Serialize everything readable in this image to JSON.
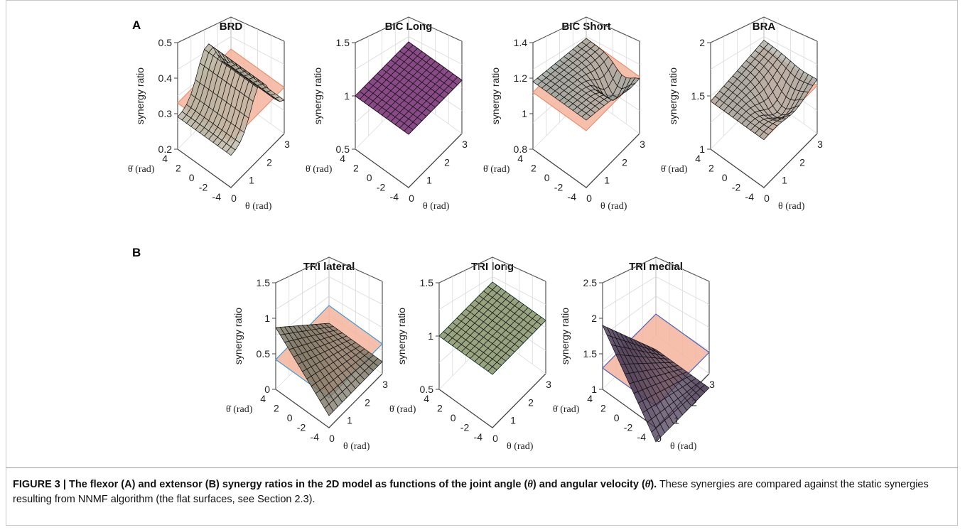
{
  "panels": [
    {
      "label": "A"
    },
    {
      "label": "B"
    }
  ],
  "plots": [
    {
      "title": "BRD",
      "zticks": [
        "0.5",
        "0.4",
        "0.3",
        "0.2"
      ],
      "plane_level": 0.33,
      "plane_color": "#f4b49c",
      "surface_color": "#b9b3a0",
      "edge_color": "#e8916f"
    },
    {
      "title": "BIC Long",
      "zticks": [
        "1.5",
        "1",
        "0.5"
      ],
      "plane_level": 1.0,
      "plane_color": "#6e2f73",
      "surface_color": "#8a4a86",
      "edge_color": "#5a2060"
    },
    {
      "title": "BIC Short",
      "zticks": [
        "1.4",
        "1.2",
        "1",
        "0.8"
      ],
      "plane_level": 1.12,
      "plane_color": "#f4b49c",
      "surface_color": "#9fa6a0",
      "edge_color": "#e8916f"
    },
    {
      "title": "BRA",
      "zticks": [
        "2",
        "1.5",
        "1"
      ],
      "plane_level": 1.45,
      "plane_color": "#f4b49c",
      "surface_color": "#a9aaa3",
      "edge_color": "#e8916f"
    },
    {
      "title": "TRI lateral",
      "zticks": [
        "1.5",
        "1",
        "0.5",
        "0"
      ],
      "plane_level": 0.42,
      "plane_color": "#f4b49c",
      "surface_color": "#7d7665",
      "edge_color": "#3c9bd6"
    },
    {
      "title": "TRI long",
      "zticks": [
        "1.5",
        "1",
        "0.5"
      ],
      "plane_level": 1.0,
      "plane_color": "#7d8a6a",
      "surface_color": "#9aa67f",
      "edge_color": "#5fc5a0"
    },
    {
      "title": "TRI medial",
      "zticks": [
        "2.5",
        "2",
        "1.5",
        "1"
      ],
      "plane_level": 1.3,
      "plane_color": "#f4b49c",
      "surface_color": "#4a3a55",
      "edge_color": "#4d5fc0"
    }
  ],
  "axes": {
    "zlabel": "synergy ratio",
    "velocity_label": "θ̇ (rad)",
    "angle_label": "θ (rad)",
    "velocity_ticks": [
      "4",
      "2",
      "0",
      "-2",
      "-4"
    ],
    "angle_ticks": [
      "0",
      "1",
      "2",
      "3"
    ]
  },
  "caption": {
    "lead": "FIGURE 3 | The flexor (A) and extensor (B) synergy ratios in the 2D model as functions of the joint angle (",
    "theta": "θ",
    "mid": ") and angular velocity (",
    "thetadot": "θ̇",
    "lead_end": ").",
    "body": " These synergies are compared against the static synergies resulting from NNMF algorithm (the flat surfaces, see Section 2.3)."
  }
}
